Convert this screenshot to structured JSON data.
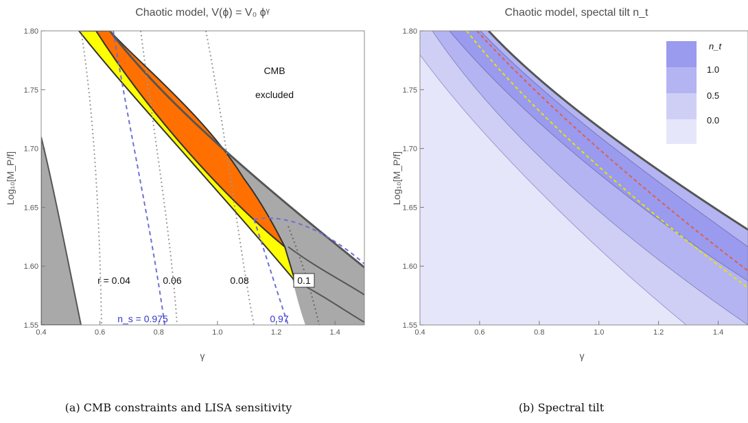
{
  "panels": {
    "a": {
      "title": "Chaotic model, V(ϕ) = V₀ ϕᵞ",
      "caption": "(a) CMB constraints and LISA sensitivity",
      "cmb_label_1": "CMB",
      "cmb_label_2": "excluded",
      "r_labels": [
        "r = 0.04",
        "0.06",
        "0.08",
        "0.1"
      ],
      "ns_labels": [
        "n_s = 0.975",
        "0.97"
      ]
    },
    "b": {
      "title": "Chaotic model, spectal tilt n_t",
      "caption": "(b) Spectral tilt",
      "legend_title": "n_t",
      "legend_values": [
        "1.0",
        "0.5",
        "0.0"
      ]
    }
  },
  "axes": {
    "xlabel": "γ",
    "ylabel": "Log₁₀[M_P/f]",
    "xticks": [
      "0.4",
      "0.6",
      "0.8",
      "1.0",
      "1.2",
      "1.4"
    ],
    "yticks": [
      "1.55",
      "1.60",
      "1.65",
      "1.70",
      "1.75",
      "1.80"
    ]
  },
  "colors": {
    "excluded_gray": "#a9a9a9",
    "yellow_band": "#ffff00",
    "orange_band": "#ff7000",
    "dotted_r": "#999999",
    "dashed_ns": "#6e6ed6",
    "tilt_shades": [
      "#e6e6fb",
      "#cfcff6",
      "#b4b4f2",
      "#9a9aef"
    ]
  },
  "chart_data": [
    {
      "type": "area",
      "title": "Chaotic model, V(ϕ) = V₀ ϕᵞ",
      "xlabel": "γ",
      "ylabel": "Log₁₀[M_P/f]",
      "xlim": [
        0.4,
        1.5
      ],
      "ylim": [
        1.55,
        1.8
      ],
      "grid": false,
      "regions": [
        {
          "name": "CMB excluded (upper right)",
          "boundary_x": [
            0.58,
            0.8,
            1.0,
            1.2,
            1.4,
            1.5
          ],
          "boundary_y": [
            1.8,
            1.745,
            1.707,
            1.672,
            1.632,
            1.61
          ]
        },
        {
          "name": "excluded (lower left)",
          "boundary_x": [
            0.4,
            0.45,
            0.5,
            0.52
          ],
          "boundary_y": [
            1.72,
            1.66,
            1.59,
            1.55
          ]
        },
        {
          "name": "yellow band",
          "x": [
            0.51,
            0.7,
            0.9,
            1.1,
            1.26
          ],
          "y_low": [
            1.8,
            1.735,
            1.683,
            1.637,
            1.6
          ],
          "y_high": [
            1.8,
            1.765,
            1.722,
            1.68,
            1.62
          ]
        },
        {
          "name": "orange band",
          "x": [
            0.55,
            0.7,
            0.9,
            1.1,
            1.23
          ],
          "y_low": [
            1.8,
            1.765,
            1.722,
            1.68,
            1.625
          ],
          "y_high": [
            1.8,
            1.775,
            1.728,
            1.685,
            1.64
          ]
        }
      ],
      "contours_r": [
        {
          "label": "r = 0.04",
          "x": [
            0.52,
            0.575
          ],
          "y": [
            1.8,
            1.55
          ]
        },
        {
          "label": "0.06",
          "x": [
            0.69,
            0.85
          ],
          "y": [
            1.8,
            1.55
          ]
        },
        {
          "label": "0.08",
          "x": [
            0.95,
            1.1
          ],
          "y": [
            1.8,
            1.55
          ]
        },
        {
          "label": "0.1",
          "x": [
            1.2,
            1.31
          ],
          "y": [
            1.65,
            1.55
          ]
        }
      ],
      "contours_ns": [
        {
          "label": "n_s = 0.975",
          "x": [
            0.64,
            0.8
          ],
          "y": [
            1.8,
            1.55
          ]
        },
        {
          "label": "0.97",
          "x": [
            1.1,
            1.26
          ],
          "y": [
            1.65,
            1.55
          ]
        }
      ]
    },
    {
      "type": "area",
      "title": "Chaotic model, spectal tilt n_t",
      "xlabel": "γ",
      "ylabel": "Log₁₀[M_P/f]",
      "xlim": [
        0.4,
        1.5
      ],
      "ylim": [
        1.55,
        1.8
      ],
      "legend": {
        "title": "n_t",
        "entries": [
          "1.0",
          "0.5",
          "0.0"
        ],
        "placement": "top-right"
      },
      "grid": false,
      "band_boundaries": [
        {
          "x": [
            0.4,
            0.8,
            1.2,
            1.5
          ],
          "y": [
            1.72,
            1.63,
            1.58,
            1.55
          ]
        },
        {
          "x": [
            0.4,
            0.8,
            1.2,
            1.5
          ],
          "y": [
            1.775,
            1.68,
            1.61,
            1.57
          ]
        },
        {
          "x": [
            0.46,
            0.8,
            1.2,
            1.5
          ],
          "y": [
            1.8,
            1.715,
            1.642,
            1.595
          ]
        },
        {
          "x": [
            0.55,
            0.8,
            1.2,
            1.5
          ],
          "y": [
            1.8,
            1.745,
            1.672,
            1.625
          ]
        }
      ],
      "dashed_lines": [
        {
          "color": "yellow",
          "x": [
            0.48,
            0.8,
            1.2,
            1.5
          ],
          "y": [
            1.8,
            1.72,
            1.645,
            1.597
          ]
        },
        {
          "color": "red",
          "x": [
            0.52,
            0.8,
            1.2,
            1.5
          ],
          "y": [
            1.8,
            1.733,
            1.658,
            1.61
          ]
        }
      ]
    }
  ]
}
